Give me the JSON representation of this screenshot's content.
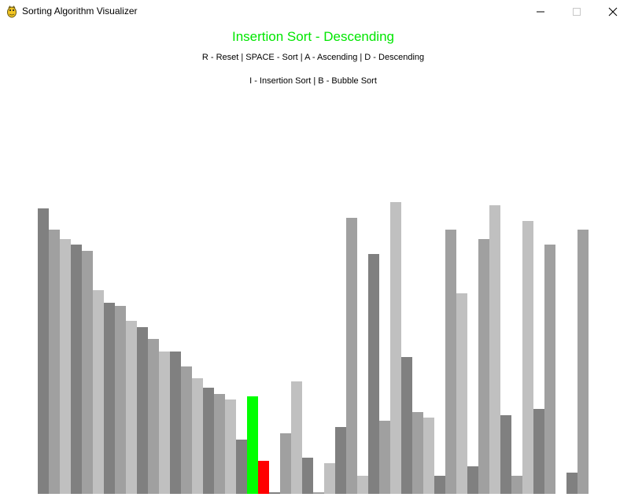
{
  "window": {
    "title": "Sorting Algorithm Visualizer",
    "icon": "python-snake-icon"
  },
  "header": {
    "title": "Insertion Sort - Descending",
    "title_color": "#00e600",
    "controls_line1": "R - Reset | SPACE - Sort | A - Ascending | D - Descending",
    "controls_line2": "I - Insertion Sort | B - Bubble Sort"
  },
  "chart_data": {
    "type": "bar",
    "values": [
      94,
      87,
      84,
      82,
      80,
      67,
      63,
      62,
      57,
      55,
      51,
      47,
      47,
      42,
      38,
      35,
      33,
      31,
      18,
      32,
      11,
      0.5,
      20,
      37,
      12,
      0.5,
      10,
      22,
      91,
      6,
      79,
      24,
      96,
      45,
      27,
      25,
      6,
      87,
      66,
      9,
      84,
      95,
      26,
      6,
      90,
      28,
      82,
      0,
      7,
      87
    ],
    "active_bars": {
      "current": 19,
      "compare": 20
    },
    "colors": {
      "shade_a": "#808080",
      "shade_b": "#a0a0a0",
      "shade_c": "#c0c0c0",
      "current": "#00ff00",
      "compare": "#ff0000"
    }
  }
}
